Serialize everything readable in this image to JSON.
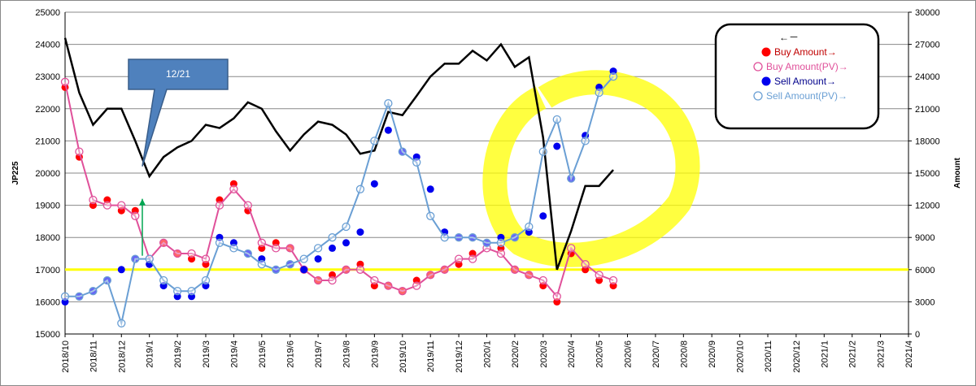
{
  "chart_data": {
    "type": "line",
    "y_label": "JP225",
    "y2_label": "Amount",
    "xlim": [
      2018.75,
      2021.25
    ],
    "xticks": [
      {
        "value": 2018.75,
        "label": "2018/10"
      },
      {
        "value": 2018.833,
        "label": "2018/11"
      },
      {
        "value": 2018.917,
        "label": "2018/12"
      },
      {
        "value": 2019.0,
        "label": "2019/1"
      },
      {
        "value": 2019.083,
        "label": "2019/2"
      },
      {
        "value": 2019.167,
        "label": "2019/3"
      },
      {
        "value": 2019.25,
        "label": "2019/4"
      },
      {
        "value": 2019.333,
        "label": "2019/5"
      },
      {
        "value": 2019.417,
        "label": "2019/6"
      },
      {
        "value": 2019.5,
        "label": "2019/7"
      },
      {
        "value": 2019.583,
        "label": "2019/8"
      },
      {
        "value": 2019.667,
        "label": "2019/9"
      },
      {
        "value": 2019.75,
        "label": "2019/10"
      },
      {
        "value": 2019.833,
        "label": "2019/11"
      },
      {
        "value": 2019.917,
        "label": "2019/12"
      },
      {
        "value": 2020.0,
        "label": "2020/1"
      },
      {
        "value": 2020.083,
        "label": "2020/2"
      },
      {
        "value": 2020.167,
        "label": "2020/3"
      },
      {
        "value": 2020.25,
        "label": "2020/4"
      },
      {
        "value": 2020.333,
        "label": "2020/5"
      },
      {
        "value": 2020.417,
        "label": "2020/6"
      },
      {
        "value": 2020.5,
        "label": "2020/7"
      },
      {
        "value": 2020.583,
        "label": "2020/8"
      },
      {
        "value": 2020.667,
        "label": "2020/9"
      },
      {
        "value": 2020.75,
        "label": "2020/10"
      },
      {
        "value": 2020.833,
        "label": "2020/11"
      },
      {
        "value": 2020.917,
        "label": "2020/12"
      },
      {
        "value": 2021.0,
        "label": "2021/1"
      },
      {
        "value": 2021.083,
        "label": "2021/2"
      },
      {
        "value": 2021.167,
        "label": "2021/3"
      },
      {
        "value": 2021.25,
        "label": "2021/4"
      }
    ],
    "ylim": [
      15000,
      25000
    ],
    "yticks": [
      15000,
      16000,
      17000,
      18000,
      19000,
      20000,
      21000,
      22000,
      23000,
      24000,
      25000
    ],
    "y2lim": [
      0,
      30000
    ],
    "y2ticks": [
      0,
      3000,
      6000,
      9000,
      12000,
      15000,
      18000,
      21000,
      24000,
      27000,
      30000
    ],
    "grid": true,
    "reference_line": {
      "value": 17000,
      "color": "#ffff00"
    },
    "annotation": {
      "text": "12/21",
      "x": 2018.979,
      "y": 19200
    },
    "x": [
      2018.75,
      2018.792,
      2018.833,
      2018.875,
      2018.917,
      2018.958,
      2019.0,
      2019.042,
      2019.083,
      2019.125,
      2019.167,
      2019.208,
      2019.25,
      2019.292,
      2019.333,
      2019.375,
      2019.417,
      2019.458,
      2019.5,
      2019.542,
      2019.583,
      2019.625,
      2019.667,
      2019.708,
      2019.75,
      2019.792,
      2019.833,
      2019.875,
      2019.917,
      2019.958,
      2020.0,
      2020.042,
      2020.083,
      2020.125,
      2020.167,
      2020.208,
      2020.25,
      2020.292,
      2020.333,
      2020.375
    ],
    "series": [
      {
        "name": "←－",
        "color": "#000000",
        "style": "line",
        "values": [
          24200,
          22500,
          21500,
          22000,
          22000,
          21000,
          19900,
          20500,
          20800,
          21000,
          21500,
          21400,
          21700,
          22200,
          22000,
          21300,
          20700,
          21200,
          21600,
          21500,
          21200,
          20600,
          20700,
          21900,
          21800,
          22400,
          23000,
          23400,
          23400,
          23800,
          23500,
          24000,
          23300,
          23600,
          21100,
          17000,
          18200,
          19600,
          19600,
          20100
        ]
      },
      {
        "name": "Buy Amount→",
        "color": "#ff0000",
        "axis": "y2",
        "style": "dot",
        "values": [
          23000,
          16500,
          12000,
          12500,
          11500,
          11500,
          6500,
          8500,
          7500,
          7000,
          6500,
          12500,
          14000,
          11500,
          8000,
          8500,
          8000,
          6000,
          5000,
          5500,
          6000,
          6500,
          4500,
          4500,
          4000,
          5000,
          5500,
          6000,
          6500,
          7500,
          8500,
          8000,
          6000,
          5500,
          4500,
          3000,
          7500,
          6000,
          5000,
          4500
        ]
      },
      {
        "name": "Buy Amount(PV)→",
        "color": "#e0509a",
        "axis": "y2",
        "style": "circle-line",
        "values": [
          23500,
          17000,
          12500,
          12000,
          12000,
          11000,
          7000,
          8500,
          7500,
          7500,
          7000,
          12000,
          13500,
          12000,
          8500,
          8000,
          8000,
          6000,
          5000,
          5000,
          6000,
          6000,
          5000,
          4500,
          4000,
          4500,
          5500,
          6000,
          7000,
          7000,
          8000,
          7500,
          6000,
          5500,
          5000,
          3500,
          8000,
          6500,
          5500,
          5000
        ]
      },
      {
        "name": "Sell Amount→",
        "color": "#0000ee",
        "axis": "y2",
        "style": "dot",
        "values": [
          3000,
          3500,
          4000,
          5000,
          6000,
          7000,
          6500,
          4500,
          3500,
          3500,
          4500,
          9000,
          8500,
          7500,
          7000,
          6000,
          6500,
          6000,
          7000,
          8000,
          8500,
          9500,
          14000,
          19000,
          17000,
          16500,
          13500,
          9500,
          9000,
          9000,
          8500,
          9000,
          9000,
          9500,
          11000,
          17500,
          14500,
          18500,
          23000,
          24500
        ]
      },
      {
        "name": "Sell Amount(PV)→",
        "color": "#6a9fd4",
        "axis": "y2",
        "style": "circle-line",
        "values": [
          3500,
          3500,
          4000,
          5000,
          1000,
          7000,
          7000,
          5000,
          4000,
          4000,
          5000,
          8500,
          8000,
          7500,
          6500,
          6000,
          6500,
          7000,
          8000,
          9000,
          10000,
          13500,
          18000,
          21500,
          17000,
          16000,
          11000,
          9000,
          9000,
          9000,
          8500,
          8500,
          9000,
          10000,
          17000,
          20000,
          14500,
          18000,
          22500,
          24000
        ]
      }
    ]
  }
}
